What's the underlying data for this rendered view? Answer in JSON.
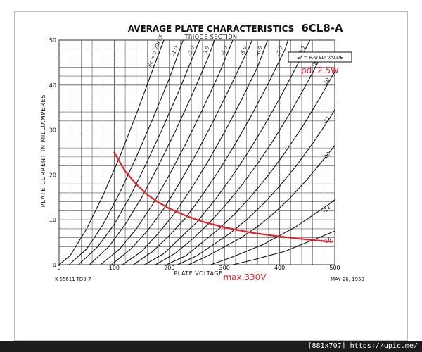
{
  "chart_data": {
    "type": "line",
    "title": "AVERAGE PLATE CHARACTERISTICS",
    "tube": "6CL8-A",
    "subtitle": "TRIODE SECTION",
    "xlabel": "PLATE VOLTAGE",
    "ylabel": "PLATE CURRENT IN MILLIAMPERES",
    "xlim": [
      0,
      500
    ],
    "ylim": [
      0,
      50
    ],
    "x_ticks": [
      0,
      100,
      200,
      300,
      400,
      500
    ],
    "y_ticks": [
      0,
      10,
      20,
      30,
      40,
      50
    ],
    "grid": true,
    "legend_box": "Ef = RATED VALUE",
    "curves": [
      {
        "label": "Ec = 0 VOLTS",
        "points": [
          [
            0,
            0
          ],
          [
            20,
            2
          ],
          [
            50,
            8
          ],
          [
            80,
            15.5
          ],
          [
            110,
            24
          ],
          [
            140,
            33.5
          ],
          [
            170,
            43.5
          ],
          [
            190,
            50
          ]
        ]
      },
      {
        "label": "-1.0",
        "points": [
          [
            18,
            0
          ],
          [
            50,
            3.5
          ],
          [
            80,
            9
          ],
          [
            110,
            16
          ],
          [
            140,
            24
          ],
          [
            170,
            32.5
          ],
          [
            200,
            41.5
          ],
          [
            225,
            50
          ]
        ]
      },
      {
        "label": "-2.0",
        "points": [
          [
            35,
            0
          ],
          [
            70,
            4
          ],
          [
            100,
            9
          ],
          [
            130,
            15.5
          ],
          [
            160,
            23
          ],
          [
            190,
            31
          ],
          [
            220,
            39.5
          ],
          [
            250,
            48.5
          ],
          [
            255,
            50
          ]
        ]
      },
      {
        "label": "-3.0",
        "points": [
          [
            55,
            0
          ],
          [
            90,
            4
          ],
          [
            120,
            9
          ],
          [
            150,
            15
          ],
          [
            180,
            22
          ],
          [
            210,
            29.5
          ],
          [
            240,
            37.5
          ],
          [
            270,
            46
          ],
          [
            282,
            50
          ]
        ]
      },
      {
        "label": "-4.0",
        "points": [
          [
            75,
            0
          ],
          [
            110,
            3.5
          ],
          [
            140,
            8
          ],
          [
            170,
            13.5
          ],
          [
            200,
            20
          ],
          [
            230,
            27
          ],
          [
            260,
            34.5
          ],
          [
            290,
            42.5
          ],
          [
            315,
            50
          ]
        ]
      },
      {
        "label": "-5.0",
        "points": [
          [
            95,
            0
          ],
          [
            130,
            3.5
          ],
          [
            160,
            7.5
          ],
          [
            190,
            12.5
          ],
          [
            220,
            18.5
          ],
          [
            250,
            25
          ],
          [
            280,
            32
          ],
          [
            310,
            39.5
          ],
          [
            345,
            48.5
          ],
          [
            350,
            50
          ]
        ]
      },
      {
        "label": "-6.0",
        "points": [
          [
            115,
            0
          ],
          [
            150,
            3
          ],
          [
            180,
            7
          ],
          [
            210,
            11.5
          ],
          [
            240,
            17
          ],
          [
            270,
            23
          ],
          [
            300,
            29.5
          ],
          [
            330,
            36.5
          ],
          [
            360,
            44
          ],
          [
            378,
            50
          ]
        ]
      },
      {
        "label": "-7.0",
        "points": [
          [
            135,
            0
          ],
          [
            170,
            3
          ],
          [
            200,
            6.5
          ],
          [
            230,
            10.5
          ],
          [
            260,
            15.5
          ],
          [
            290,
            21
          ],
          [
            320,
            27
          ],
          [
            350,
            33.5
          ],
          [
            380,
            40.5
          ],
          [
            410,
            48
          ],
          [
            415,
            50
          ]
        ]
      },
      {
        "label": "-8.0",
        "points": [
          [
            155,
            0
          ],
          [
            190,
            2.5
          ],
          [
            220,
            6
          ],
          [
            250,
            9.5
          ],
          [
            280,
            14
          ],
          [
            310,
            19
          ],
          [
            340,
            24.5
          ],
          [
            370,
            30.5
          ],
          [
            400,
            37
          ],
          [
            430,
            44
          ],
          [
            455,
            50
          ]
        ]
      },
      {
        "label": "-9.0",
        "points": [
          [
            175,
            0
          ],
          [
            210,
            2.5
          ],
          [
            240,
            5.5
          ],
          [
            270,
            9
          ],
          [
            300,
            13
          ],
          [
            330,
            17.5
          ],
          [
            360,
            22.5
          ],
          [
            390,
            28
          ],
          [
            420,
            34
          ],
          [
            450,
            40.5
          ],
          [
            480,
            47.5
          ]
        ]
      },
      {
        "label": "-10",
        "points": [
          [
            195,
            0
          ],
          [
            230,
            2
          ],
          [
            260,
            5
          ],
          [
            290,
            8
          ],
          [
            320,
            11.5
          ],
          [
            350,
            15.5
          ],
          [
            380,
            20
          ],
          [
            410,
            25
          ],
          [
            440,
            30.5
          ],
          [
            470,
            36.5
          ],
          [
            500,
            43
          ]
        ]
      },
      {
        "label": "-11",
        "points": [
          [
            215,
            0
          ],
          [
            250,
            2
          ],
          [
            280,
            4.5
          ],
          [
            310,
            7
          ],
          [
            340,
            10
          ],
          [
            370,
            13.5
          ],
          [
            400,
            17.5
          ],
          [
            430,
            22
          ],
          [
            460,
            27
          ],
          [
            490,
            32.5
          ],
          [
            500,
            34.5
          ]
        ]
      },
      {
        "label": "-12",
        "points": [
          [
            235,
            0
          ],
          [
            270,
            2
          ],
          [
            300,
            4
          ],
          [
            330,
            6
          ],
          [
            360,
            8.5
          ],
          [
            390,
            11.5
          ],
          [
            420,
            15
          ],
          [
            450,
            19
          ],
          [
            480,
            23.5
          ],
          [
            500,
            26.5
          ]
        ]
      },
      {
        "label": "-14",
        "points": [
          [
            275,
            0
          ],
          [
            310,
            1.5
          ],
          [
            340,
            3
          ],
          [
            370,
            4.5
          ],
          [
            400,
            6.5
          ],
          [
            430,
            8.5
          ],
          [
            460,
            11
          ],
          [
            490,
            13.5
          ],
          [
            500,
            14.5
          ]
        ]
      },
      {
        "label": "-16",
        "points": [
          [
            315,
            0
          ],
          [
            350,
            1
          ],
          [
            380,
            2
          ],
          [
            410,
            3
          ],
          [
            440,
            4.5
          ],
          [
            470,
            6
          ],
          [
            500,
            7.5
          ]
        ]
      }
    ],
    "overlay": {
      "name": "pd. 2.5W",
      "color": "#e8202a",
      "points": [
        [
          100,
          25
        ],
        [
          120,
          20.8
        ],
        [
          140,
          17.9
        ],
        [
          160,
          15.6
        ],
        [
          180,
          13.9
        ],
        [
          200,
          12.5
        ],
        [
          230,
          10.9
        ],
        [
          260,
          9.6
        ],
        [
          300,
          8.3
        ],
        [
          350,
          7.1
        ],
        [
          400,
          6.3
        ],
        [
          450,
          5.6
        ],
        [
          495,
          5.1
        ]
      ]
    },
    "annotations": {
      "pd_label": "pd. 2.5W",
      "max_label": "max.330V",
      "code": "K-55611-TD9-7",
      "date": "MAY 26, 1959"
    }
  },
  "footer": {
    "text": "[881x707] https://upic.me/"
  },
  "colors": {
    "grid": "#555555",
    "curve": "#111111",
    "accent": "#e8202a",
    "frame": "#bdbdbd"
  }
}
